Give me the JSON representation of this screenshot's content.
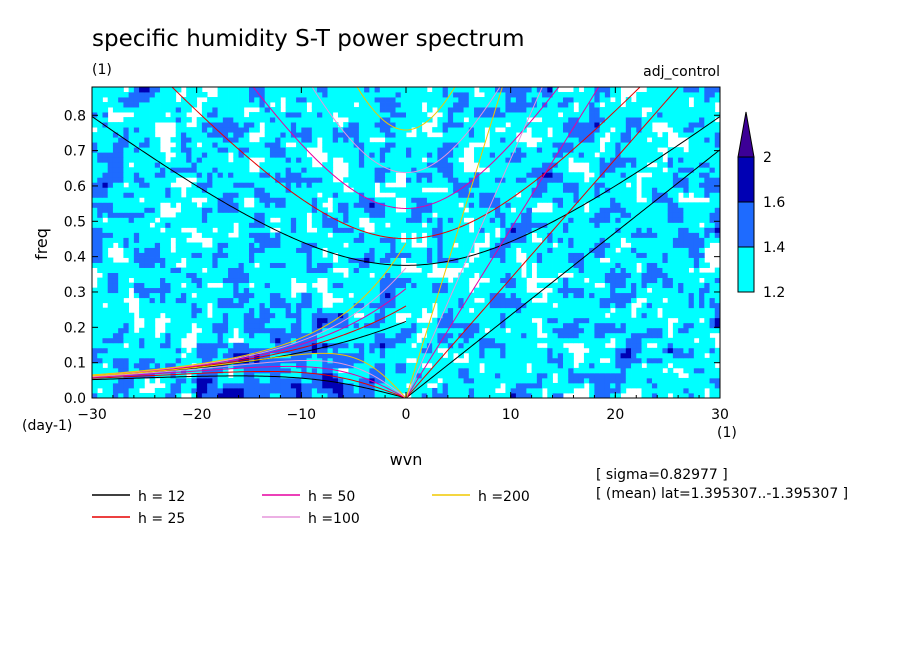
{
  "chart_data": {
    "type": "heatmap",
    "title": "specific humidity S-T power spectrum",
    "units_label": "(1)",
    "experiment": "adj_control",
    "xlabel": "wvn",
    "ylabel": "freq",
    "x_unit": "(1)",
    "y_unit": "(day-1)",
    "xlim": [
      -30,
      30
    ],
    "ylim": [
      0,
      0.88
    ],
    "x_ticks": [
      -30,
      -20,
      -10,
      0,
      10,
      20,
      30
    ],
    "y_ticks": [
      0.0,
      0.1,
      0.2,
      0.3,
      0.4,
      0.5,
      0.6,
      0.7,
      0.8
    ],
    "colorbar": {
      "levels": [
        1.2,
        1.4,
        1.6,
        2
      ],
      "colors": [
        "#00ffff",
        "#1e6bff",
        "#0000b4",
        "#3c0096"
      ]
    },
    "dispersion_curves": [
      {
        "label": "h = 12",
        "h": 12,
        "color": "#000000"
      },
      {
        "label": "h = 25",
        "h": 25,
        "color": "#e60000"
      },
      {
        "label": "h = 50",
        "h": 50,
        "color": "#e600a0"
      },
      {
        "label": "h =100",
        "h": 100,
        "color": "#e696dc"
      },
      {
        "label": "h =200",
        "h": 200,
        "color": "#f0c800"
      }
    ],
    "annotations": [
      "[ sigma=0.82977 ]",
      "[ (mean) lat=1.395307..-1.395307 ]"
    ]
  }
}
